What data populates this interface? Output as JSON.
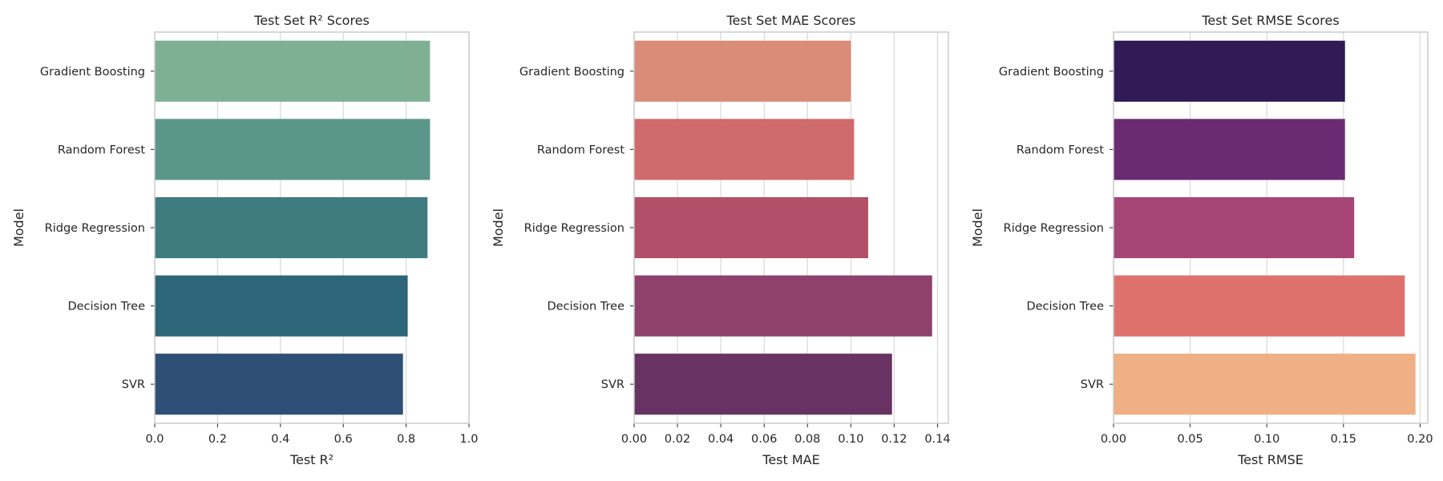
{
  "chart_data": [
    {
      "type": "bar",
      "orientation": "horizontal",
      "title": "Test Set R² Scores",
      "xlabel": "Test R²",
      "ylabel": "Model",
      "categories": [
        "Gradient Boosting",
        "Random Forest",
        "Ridge Regression",
        "Decision Tree",
        "SVR"
      ],
      "values": [
        0.876,
        0.876,
        0.868,
        0.805,
        0.79
      ],
      "colors": [
        "#7fb093",
        "#5b968b",
        "#3f7c80",
        "#2c6678",
        "#2e5076"
      ],
      "xlim": [
        0,
        1.0
      ],
      "xticks": [
        "0.0",
        "0.2",
        "0.4",
        "0.6",
        "0.8",
        "1.0"
      ],
      "grid": true
    },
    {
      "type": "bar",
      "orientation": "horizontal",
      "title": "Test Set MAE Scores",
      "xlabel": "Test MAE",
      "ylabel": "Model",
      "categories": [
        "Gradient Boosting",
        "Random Forest",
        "Ridge Regression",
        "Decision Tree",
        "SVR"
      ],
      "values": [
        0.1,
        0.1015,
        0.108,
        0.1375,
        0.119
      ],
      "colors": [
        "#d98c78",
        "#cf6b6a",
        "#b24f69",
        "#8d416b",
        "#683263"
      ],
      "xlim": [
        0,
        0.145
      ],
      "xticks": [
        "0.00",
        "0.02",
        "0.04",
        "0.06",
        "0.08",
        "0.10",
        "0.12",
        "0.14"
      ],
      "grid": true
    },
    {
      "type": "bar",
      "orientation": "horizontal",
      "title": "Test Set RMSE Scores",
      "xlabel": "Test RMSE",
      "ylabel": "Model",
      "categories": [
        "Gradient Boosting",
        "Random Forest",
        "Ridge Regression",
        "Decision Tree",
        "SVR"
      ],
      "values": [
        0.151,
        0.151,
        0.157,
        0.19,
        0.197
      ],
      "colors": [
        "#311b56",
        "#6b2b73",
        "#a64677",
        "#df716d",
        "#eeb084"
      ],
      "xlim": [
        0,
        0.205
      ],
      "xticks": [
        "0.00",
        "0.05",
        "0.10",
        "0.15",
        "0.20"
      ],
      "grid": true
    }
  ]
}
